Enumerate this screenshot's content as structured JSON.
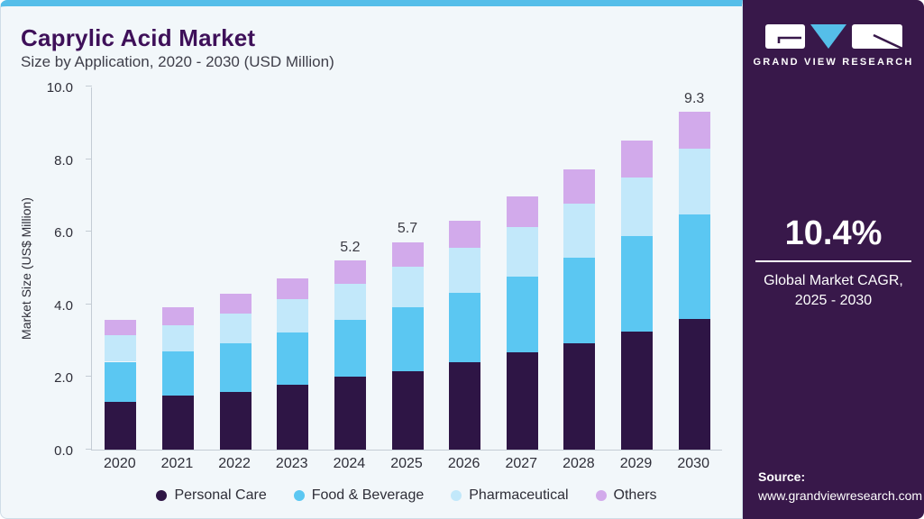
{
  "header": {
    "title": "Caprylic Acid Market",
    "subtitle": "Size by Application, 2020 - 2030 (USD Million)"
  },
  "chart_data": {
    "type": "bar",
    "stacked": true,
    "title": "Caprylic Acid Market Size by Application, 2020 - 2030 (USD Million)",
    "categories": [
      "2020",
      "2021",
      "2022",
      "2023",
      "2024",
      "2025",
      "2026",
      "2027",
      "2028",
      "2029",
      "2030"
    ],
    "series": [
      {
        "name": "Personal Care",
        "color": "#2e1545",
        "values": [
          1.31,
          1.48,
          1.6,
          1.78,
          2.0,
          2.16,
          2.4,
          2.67,
          2.94,
          3.25,
          3.6
        ]
      },
      {
        "name": "Food & Beverage",
        "color": "#5bc7f2",
        "values": [
          1.11,
          1.22,
          1.33,
          1.45,
          1.57,
          1.75,
          1.92,
          2.1,
          2.35,
          2.62,
          2.88
        ]
      },
      {
        "name": "Pharmaceutical",
        "color": "#c2e8fa",
        "values": [
          0.73,
          0.72,
          0.82,
          0.91,
          1.0,
          1.12,
          1.23,
          1.37,
          1.48,
          1.63,
          1.8
        ]
      },
      {
        "name": "Others",
        "color": "#d2aaeb",
        "values": [
          0.43,
          0.5,
          0.55,
          0.58,
          0.63,
          0.69,
          0.76,
          0.83,
          0.95,
          1.02,
          1.02
        ]
      }
    ],
    "totals_labeled": {
      "2024": "5.2",
      "2025": "5.7",
      "2030": "9.3"
    },
    "ylabel": "Market Size (US$ Million)",
    "yticks": [
      "0.0",
      "2.0",
      "4.0",
      "6.0",
      "8.0",
      "10.0"
    ],
    "ylim": [
      0,
      10
    ],
    "legend_position": "bottom",
    "grid": false
  },
  "sidebar": {
    "logo_text": "GRAND VIEW RESEARCH",
    "cagr_value": "10.4%",
    "cagr_label_line1": "Global Market CAGR,",
    "cagr_label_line2": "2025 - 2030",
    "source_label": "Source:",
    "source_url": "www.grandviewresearch.com"
  },
  "colors": {
    "accent_blue": "#55bee9",
    "panel_background": "#f2f7fa",
    "sidebar_background": "#38184a",
    "title_purple": "#3e1059"
  }
}
